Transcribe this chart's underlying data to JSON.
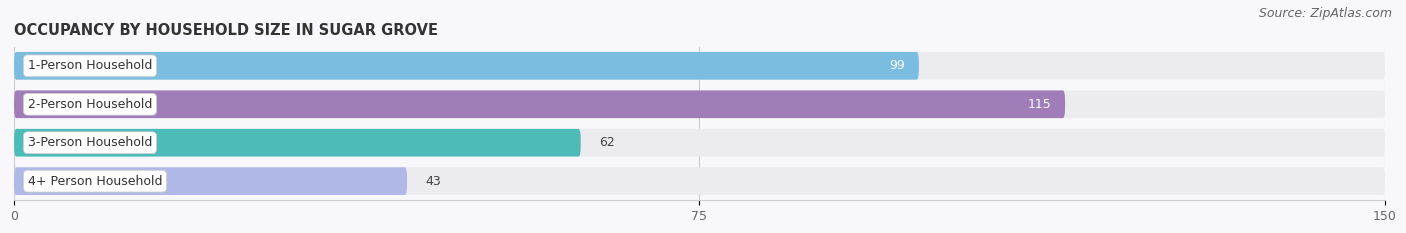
{
  "title": "OCCUPANCY BY HOUSEHOLD SIZE IN SUGAR GROVE",
  "source": "Source: ZipAtlas.com",
  "categories": [
    "1-Person Household",
    "2-Person Household",
    "3-Person Household",
    "4+ Person Household"
  ],
  "values": [
    99,
    115,
    62,
    43
  ],
  "bar_colors": [
    "#7bbde0",
    "#a07db8",
    "#4dbcb8",
    "#b0b8e8"
  ],
  "row_bg_color": "#ebebf0",
  "xlim": [
    0,
    150
  ],
  "xticks": [
    0,
    75,
    150
  ],
  "title_fontsize": 10.5,
  "source_fontsize": 9,
  "bar_label_fontsize": 9,
  "category_fontsize": 9,
  "tick_fontsize": 9,
  "fig_bg_color": "#f8f8fc"
}
